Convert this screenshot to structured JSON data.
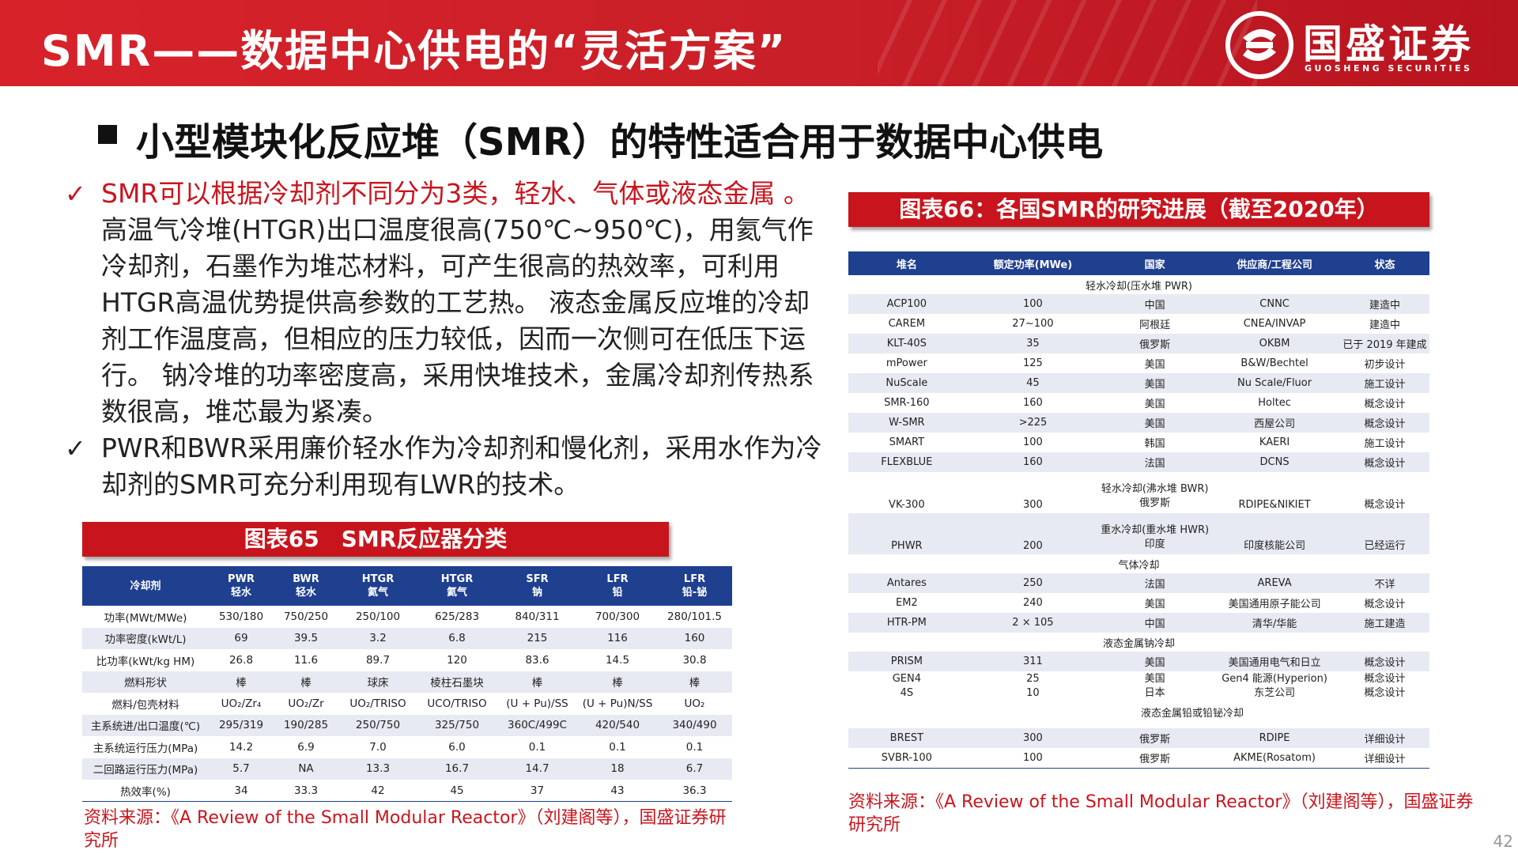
{
  "header": {
    "title": "SMR——数据中心供电的“灵活方案”",
    "logo_cn": "国盛证券",
    "logo_en": "GUOSHENG SECURITIES"
  },
  "heading": "小型模块化反应堆（SMR）的特性适合用于数据中心供电",
  "bullets": [
    {
      "highlight": "SMR可以根据冷却剂不同分为3类，轻水、气体或液态金属 。",
      "text": "高温气冷堆(HTGR)出口温度很高(750℃~950℃)，用氦气作冷却剂，石墨作为堆芯材料，可产生很高的热效率，可利用HTGR高温优势提供高参数的工艺热。 液态金属反应堆的冷却剂工作温度高，但相应的压力较低，因而一次侧可在低压下运行。 钠冷堆的功率密度高，采用快堆技术，金属冷却剂传热系数很高，堆芯最为紧凑。"
    },
    {
      "highlight": "",
      "text": "PWR和BWR采用廉价轻水作为冷却剂和慢化剂，采用水作为冷却剂的SMR可充分利用现有LWR的技术。"
    }
  ],
  "check_symbol": "✓",
  "table65": {
    "banner": "图表65　SMR反应器分类",
    "header": [
      {
        "l1": "冷却剂",
        "l2": ""
      },
      {
        "l1": "PWR",
        "l2": "轻水"
      },
      {
        "l1": "BWR",
        "l2": "轻水"
      },
      {
        "l1": "HTGR",
        "l2": "氦气"
      },
      {
        "l1": "HTGR",
        "l2": "氦气"
      },
      {
        "l1": "SFR",
        "l2": "钠"
      },
      {
        "l1": "LFR",
        "l2": "铅"
      },
      {
        "l1": "LFR",
        "l2": "铅-铋"
      }
    ],
    "rows": [
      [
        "功率(MWt/MWe)",
        "530/180",
        "750/250",
        "250/100",
        "625/283",
        "840/311",
        "700/300",
        "280/101.5"
      ],
      [
        "功率密度(kWt/L)",
        "69",
        "39.5",
        "3.2",
        "6.8",
        "215",
        "116",
        "160"
      ],
      [
        "比功率(kWt/kg HM)",
        "26.8",
        "11.6",
        "89.7",
        "120",
        "83.6",
        "14.5",
        "30.8"
      ],
      [
        "燃料形状",
        "棒",
        "棒",
        "球床",
        "棱柱石墨块",
        "棒",
        "棒",
        "棒"
      ],
      [
        "燃料/包壳材料",
        "UO₂/Zr₄",
        "UO₂/Zr",
        "UO₂/TRISO",
        "UCO/TRISO",
        "(U + Pu)/SS",
        "(U + Pu)N/SS",
        "UO₂"
      ],
      [
        "主系统进/出口温度(℃)",
        "295/319",
        "190/285",
        "250/750",
        "325/750",
        "360C/499C",
        "420/540",
        "340/490"
      ],
      [
        "主系统运行压力(MPa)",
        "14.2",
        "6.9",
        "7.0",
        "6.0",
        "0.1",
        "0.1",
        "0.1"
      ],
      [
        "二回路运行压力(MPa)",
        "5.7",
        "NA",
        "13.3",
        "16.7",
        "14.7",
        "18",
        "6.7"
      ],
      [
        "热效率(%)",
        "34",
        "33.3",
        "42",
        "45",
        "37",
        "43",
        "36.3"
      ]
    ],
    "source": "资料来源：《A Review of the Small Modular Reactor》（刘建阁等），国盛证券研究所"
  },
  "table66": {
    "banner": "图表66：各国SMR的研究进展（截至2020年）",
    "header": [
      "堆名",
      "额定功率(MWe)",
      "国家",
      "供应商/工程公司",
      "状态"
    ],
    "rows": [
      {
        "type": "cat",
        "cat": "轻水冷却(压水堆 PWR)"
      },
      {
        "type": "row",
        "shade": true,
        "cells": [
          "ACP100",
          "100",
          "中国",
          "CNNC",
          "建造中"
        ]
      },
      {
        "type": "row",
        "shade": false,
        "cells": [
          "CAREM",
          "27~100",
          "阿根廷",
          "CNEA/INVAP",
          "建造中"
        ]
      },
      {
        "type": "row",
        "shade": true,
        "cells": [
          "KLT-40S",
          "35",
          "俄罗斯",
          "OKBM",
          "已于 2019 年建成"
        ]
      },
      {
        "type": "row",
        "shade": false,
        "cells": [
          "mPower",
          "125",
          "美国",
          "B&W/Bechtel",
          "初步设计"
        ]
      },
      {
        "type": "row",
        "shade": true,
        "cells": [
          "NuScale",
          "45",
          "美国",
          "Nu Scale/Fluor",
          "施工设计"
        ]
      },
      {
        "type": "row",
        "shade": false,
        "cells": [
          "SMR-160",
          "160",
          "美国",
          "Holtec",
          "概念设计"
        ]
      },
      {
        "type": "row",
        "shade": true,
        "cells": [
          "W-SMR",
          ">225",
          "美国",
          "西屋公司",
          "概念设计"
        ]
      },
      {
        "type": "row",
        "shade": false,
        "cells": [
          "SMART",
          "100",
          "韩国",
          "KAERI",
          "施工设计"
        ]
      },
      {
        "type": "row",
        "shade": true,
        "cells": [
          "FLEXBLUE",
          "160",
          "法国",
          "DCNS",
          "概念设计"
        ]
      },
      {
        "type": "tall",
        "shade": false,
        "cat": "轻水冷却(沸水堆 BWR)",
        "cells": [
          "VK-300",
          "300",
          "俄罗斯",
          "RDIPE&NIKIET",
          "概念设计"
        ]
      },
      {
        "type": "tall",
        "shade": true,
        "cat": "重水冷却(重水堆 HWR)",
        "cells": [
          "PHWR",
          "200",
          "印度",
          "印度核能公司",
          "已经运行"
        ]
      },
      {
        "type": "cat",
        "cat": "气体冷却"
      },
      {
        "type": "row",
        "shade": true,
        "cells": [
          "Antares",
          "250",
          "法国",
          "AREVA",
          "不详"
        ]
      },
      {
        "type": "row",
        "shade": false,
        "cells": [
          "EM2",
          "240",
          "美国",
          "美国通用原子能公司",
          "概念设计"
        ]
      },
      {
        "type": "row",
        "shade": true,
        "cells": [
          "HTR-PM",
          "2 × 105",
          "中国",
          "清华/华能",
          "施工建造"
        ]
      },
      {
        "type": "cat",
        "cat": "液态金属钠冷却"
      },
      {
        "type": "row",
        "shade": true,
        "cells": [
          "PRISM",
          "311",
          "美国",
          "美国通用电气和日立",
          "概念设计"
        ]
      },
      {
        "type": "compact",
        "shade": false,
        "cells": [
          "GEN4",
          "25",
          "美国",
          "Gen4 能源(Hyperion)",
          "概念设计"
        ]
      },
      {
        "type": "compact",
        "shade": false,
        "cells": [
          "4S",
          "10",
          "日本",
          "东芝公司",
          "概念设计"
        ]
      },
      {
        "type": "cat2",
        "cat": "液态金属铅或铅铋冷却"
      },
      {
        "type": "row",
        "shade": true,
        "cells": [
          "BREST",
          "300",
          "俄罗斯",
          "RDIPE",
          "详细设计"
        ]
      },
      {
        "type": "row",
        "shade": false,
        "cells": [
          "SVBR-100",
          "100",
          "俄罗斯",
          "AKME(Rosatom)",
          "详细设计"
        ]
      }
    ],
    "source": "资料来源：《A Review of the Small Modular Reactor》（刘建阁等），国盛证券研究所"
  },
  "page_number": "42",
  "colors": {
    "brand_red": "#c8151d",
    "table_header_blue": "#1f3f8f",
    "row_shade": "#e7eaf2"
  }
}
